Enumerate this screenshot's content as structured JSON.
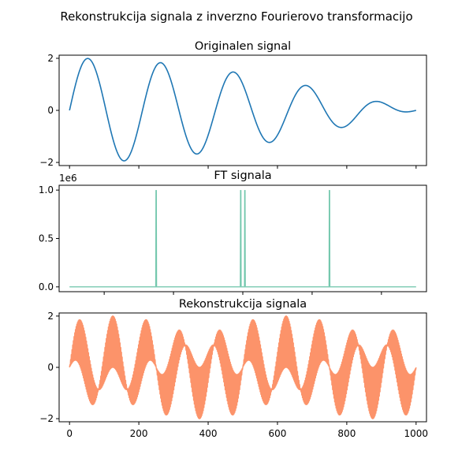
{
  "figure": {
    "suptitle": "Rekonstrukcija signala z inverzno Fourierovo transformacijo"
  },
  "chart_data": [
    {
      "type": "line",
      "title": "Originalen signal",
      "xlabel": "",
      "ylabel": "",
      "xlim": [
        -30,
        1030
      ],
      "ylim": [
        -2.12,
        2.12
      ],
      "yticks": [
        -2,
        0,
        2
      ],
      "xticks": [
        0,
        200,
        400,
        600,
        800,
        1000
      ],
      "x_ticklabels_shown": false,
      "n_points": 1000,
      "series": [
        {
          "color": "#1f77b4",
          "formula": "sin(2*pi*5*t) + sin(2*pi*4.5*t)",
          "components_hz": [
            5,
            4.5
          ],
          "envelope_peak": 2.0,
          "duration_s": 1.0
        }
      ]
    },
    {
      "type": "line",
      "title": "FT signala",
      "xlabel": "",
      "ylabel": "",
      "offset_label": "1e6",
      "xlim": [
        -30,
        1030
      ],
      "ylim": [
        -0.05,
        1.05
      ],
      "yticks": [
        0.0,
        0.5,
        1.0
      ],
      "ytick_labels": [
        "0.0",
        "0.5",
        "1.0"
      ],
      "xticks": [
        100,
        300,
        500,
        700,
        900
      ],
      "x_ticklabels_shown": false,
      "series": [
        {
          "color": "#66c2a5",
          "baseline": 0,
          "peaks": [
            {
              "x": 250,
              "y": 1.0
            },
            {
              "x": 494,
              "y": 1.0
            },
            {
              "x": 506,
              "y": 1.0
            },
            {
              "x": 750,
              "y": 1.0
            }
          ]
        }
      ]
    },
    {
      "type": "line",
      "title": "Rekonstrukcija signala",
      "xlabel": "",
      "ylabel": "",
      "xlim": [
        -30,
        1030
      ],
      "ylim": [
        -2.12,
        2.12
      ],
      "yticks": [
        -2,
        0,
        2
      ],
      "xticks": [
        0,
        200,
        400,
        600,
        800,
        1000
      ],
      "x_ticklabels_shown": true,
      "n_points": 1000,
      "series": [
        {
          "color": "#fc8d62",
          "formula": "sin(2*pi*10*t/1000) + sin(2*pi*494*t/1000)",
          "envelope_periods": 10,
          "envelope_peak": 2.0
        }
      ]
    }
  ]
}
